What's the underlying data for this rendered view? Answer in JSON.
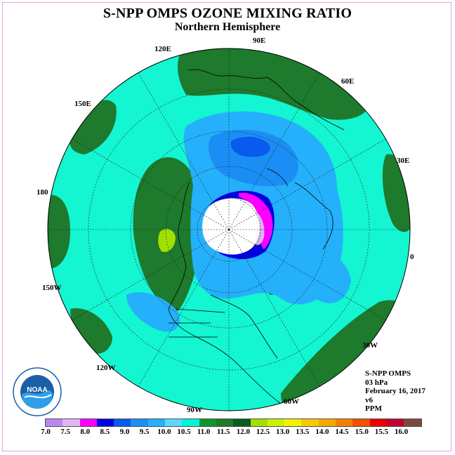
{
  "title": "S-NPP OMPS OZONE MIXING RATIO",
  "subtitle": "Northern Hemisphere",
  "longitude_labels": [
    "90E",
    "60E",
    "30E",
    "0",
    "30W",
    "60W",
    "90W",
    "120W",
    "150W",
    "180",
    "150E",
    "120E"
  ],
  "info": {
    "instrument": "S-NPP OMPS",
    "pressure": "03 hPa",
    "date": "February 16, 2017",
    "version": "v6",
    "units": "PPM"
  },
  "logo_text": "NOAA",
  "colorbar": {
    "colors": [
      "#b987f2",
      "#e0b4f4",
      "#ff00ff",
      "#0000e0",
      "#0a5af0",
      "#1b8ef5",
      "#25b0fb",
      "#5fd6fc",
      "#00f5d8",
      "#0d9630",
      "#1e7a2c",
      "#0b5a1e",
      "#a0e000",
      "#c8f200",
      "#f4f000",
      "#f6c800",
      "#f4a800",
      "#f48000",
      "#f45000",
      "#e80000",
      "#c00030",
      "#7a4a40"
    ],
    "tick_labels": [
      "7.0",
      "7.5",
      "8.0",
      "8.5",
      "9.0",
      "9.5",
      "10.0",
      "10.5",
      "11.0",
      "11.5",
      "12.0",
      "12.5",
      "13.0",
      "13.5",
      "14.0",
      "14.5",
      "15.0",
      "15.5",
      "16.0"
    ]
  },
  "colors": {
    "ocean_base": "#14f5d2",
    "dark_green": "#1e7a2c",
    "mid_green": "#0d9630",
    "light_blue": "#25b0fb",
    "blue": "#1b8ef5",
    "dark_blue": "#0a5af0",
    "navy": "#0000e0",
    "magenta": "#ff00ff",
    "lavender": "#e0b4f4",
    "yellow_green": "#a0e000",
    "polar_night": "#ffffff"
  }
}
